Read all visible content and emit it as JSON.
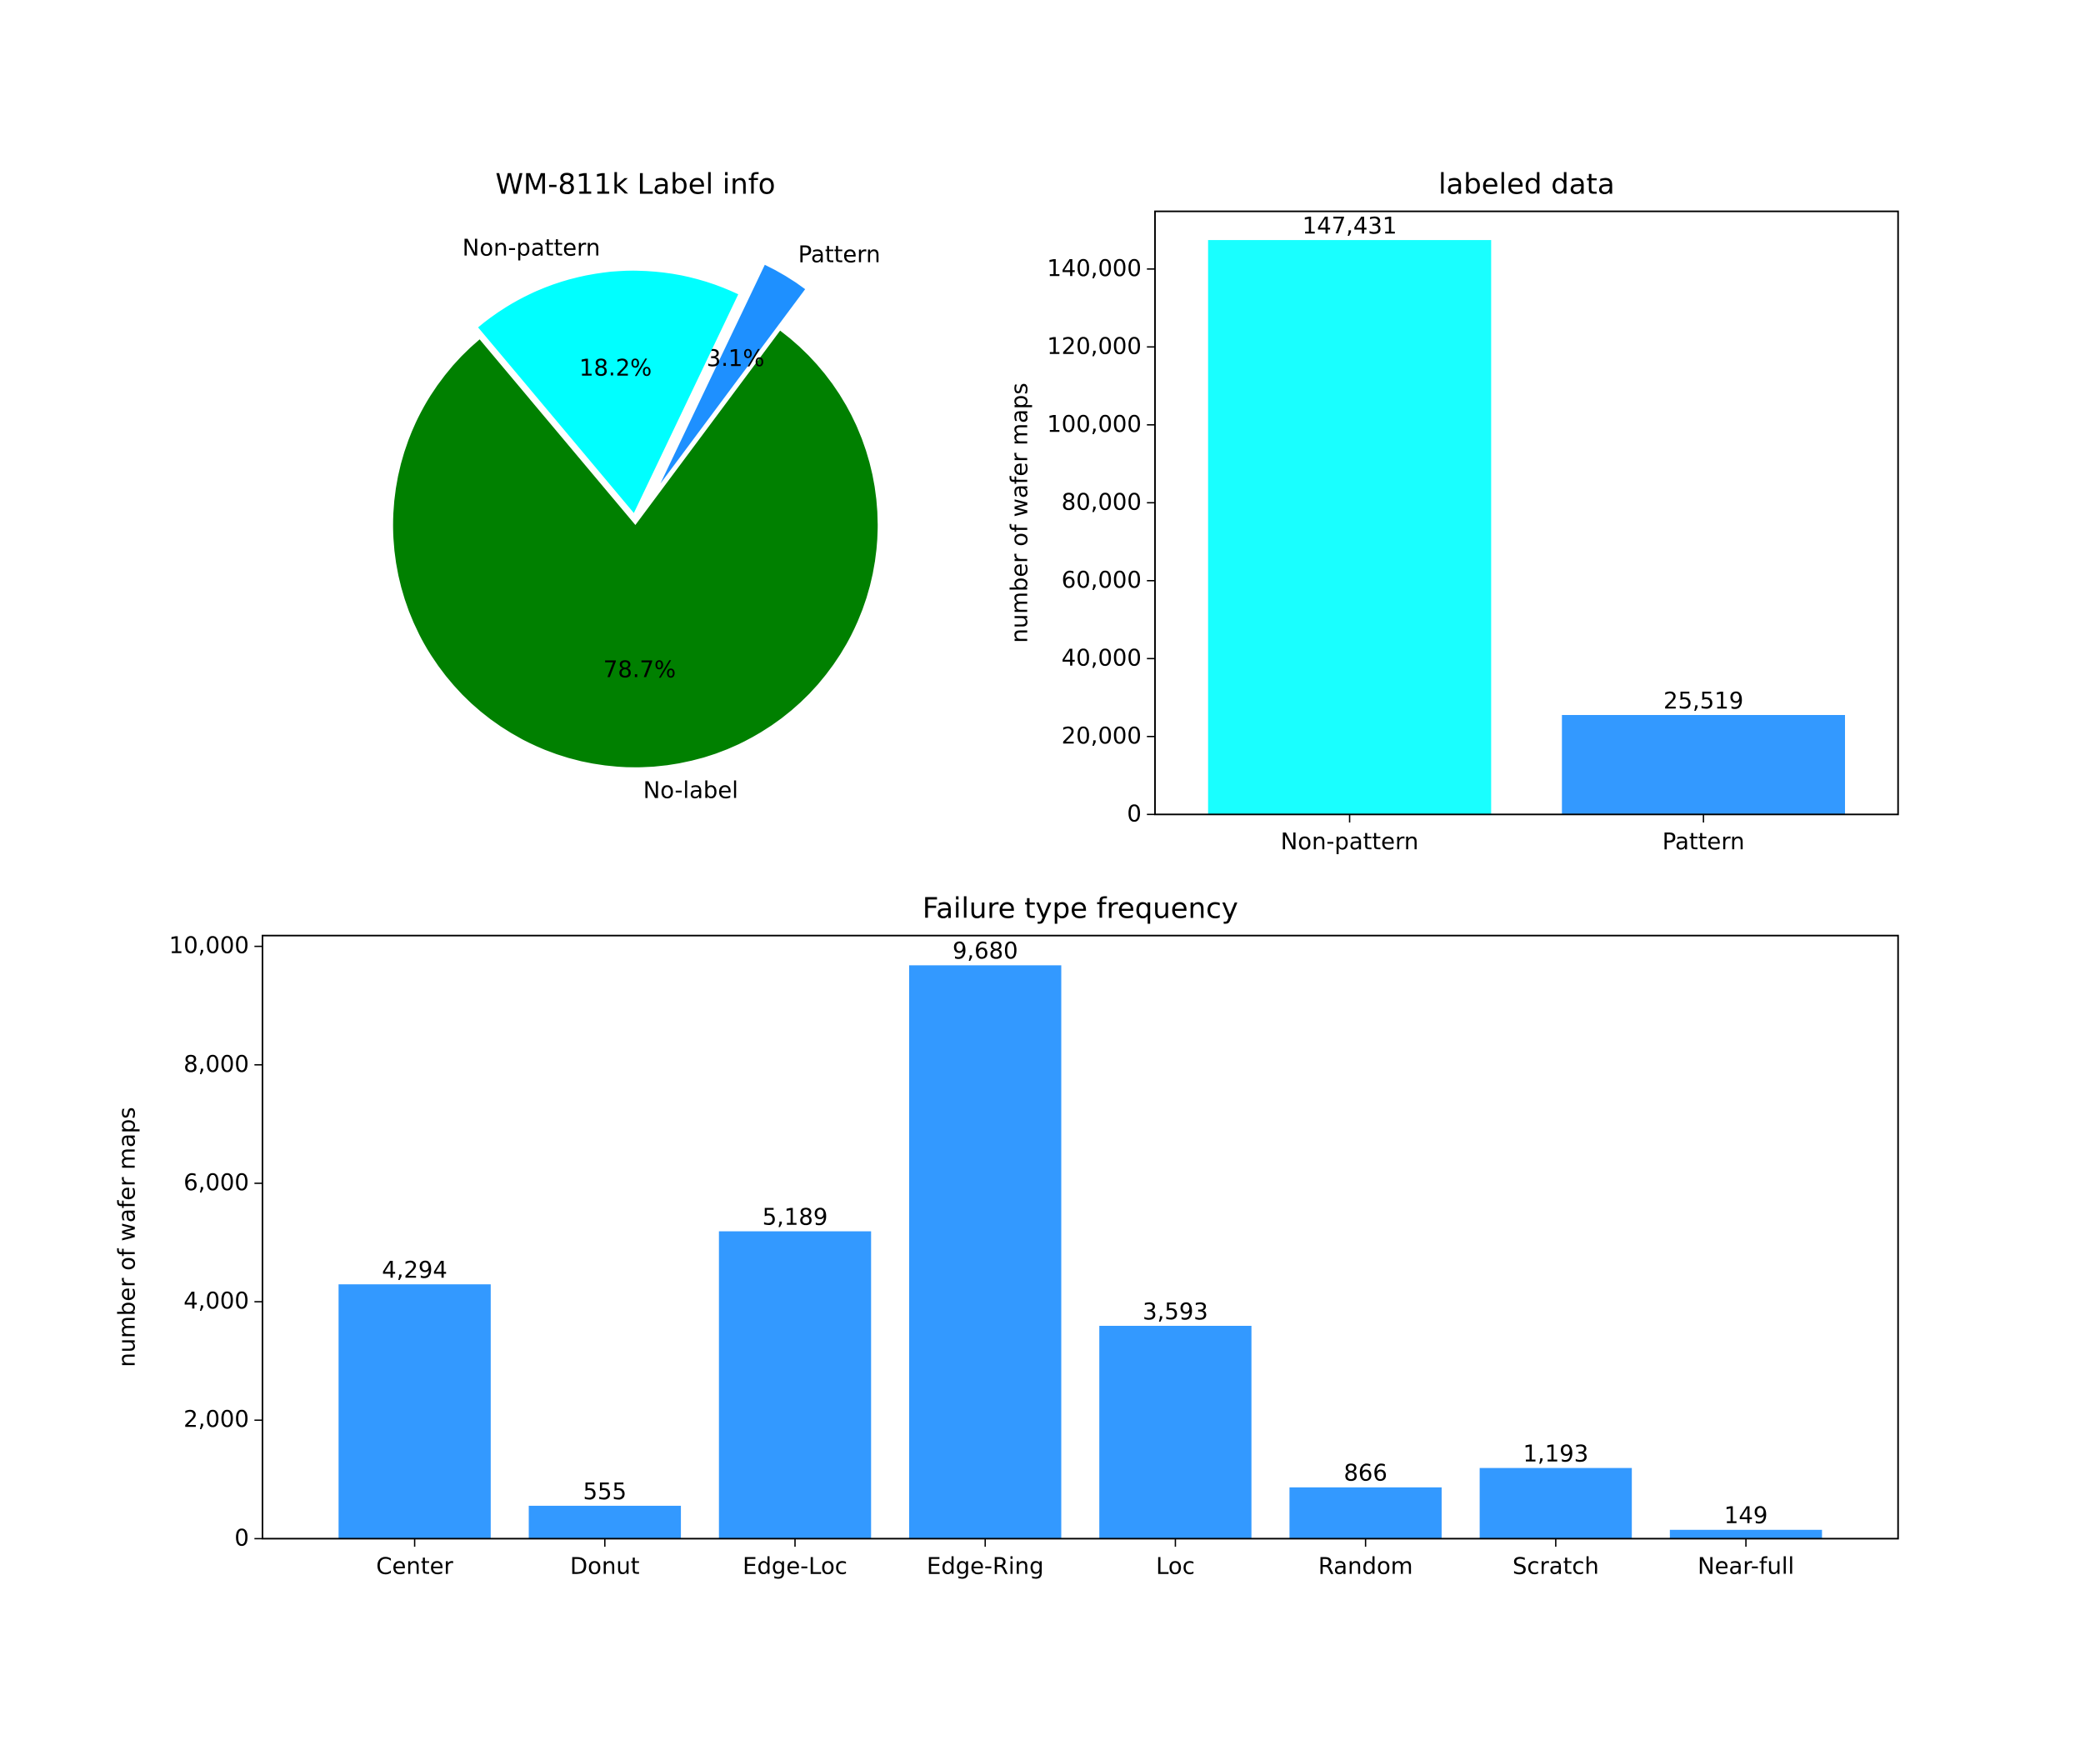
{
  "chart_data": [
    {
      "type": "pie",
      "title": "WM-811k Label info",
      "labels": [
        "No-label",
        "Pattern",
        "Non-pattern"
      ],
      "values": [
        78.7,
        3.1,
        18.2
      ],
      "value_labels": [
        "78.7%",
        "3.1%",
        "18.2%"
      ],
      "colors": [
        "#008000",
        "#1e90ff",
        "#00ffff"
      ]
    },
    {
      "type": "bar",
      "title": "labeled data",
      "ylabel": "number of wafer maps",
      "categories": [
        "Non-pattern",
        "Pattern"
      ],
      "values": [
        147431,
        25519
      ],
      "value_labels": [
        "147,431",
        "25,519"
      ],
      "colors": [
        "#19ffff",
        "#3399ff"
      ],
      "ylim": [
        0,
        154800
      ],
      "yticks": [
        0,
        {
          "value": 20000,
          "label": "20,000"
        },
        {
          "value": 40000,
          "label": "40,000"
        },
        {
          "value": 60000,
          "label": "60,000"
        },
        {
          "value": 80000,
          "label": "80,000"
        },
        {
          "value": 100000,
          "label": "100,000"
        },
        {
          "value": 120000,
          "label": "120,000"
        },
        {
          "value": 140000,
          "label": "140,000"
        }
      ]
    },
    {
      "type": "bar",
      "title": "Failure type frequency",
      "ylabel": "number of wafer maps",
      "categories": [
        "Center",
        "Donut",
        "Edge-Loc",
        "Edge-Ring",
        "Loc",
        "Random",
        "Scratch",
        "Near-full"
      ],
      "values": [
        4294,
        555,
        5189,
        9680,
        3593,
        866,
        1193,
        149
      ],
      "value_labels": [
        "4,294",
        "555",
        "5,189",
        "9,680",
        "3,593",
        "866",
        "1,193",
        "149"
      ],
      "colors": [
        "#3399ff",
        "#3399ff",
        "#3399ff",
        "#3399ff",
        "#3399ff",
        "#3399ff",
        "#3399ff",
        "#3399ff"
      ],
      "ylim": [
        0,
        10182
      ],
      "yticks": [
        0,
        {
          "value": 2000,
          "label": "2,000"
        },
        {
          "value": 4000,
          "label": "4,000"
        },
        {
          "value": 6000,
          "label": "6,000"
        },
        {
          "value": 8000,
          "label": "8,000"
        },
        {
          "value": 10000,
          "label": "10,000"
        }
      ]
    }
  ]
}
